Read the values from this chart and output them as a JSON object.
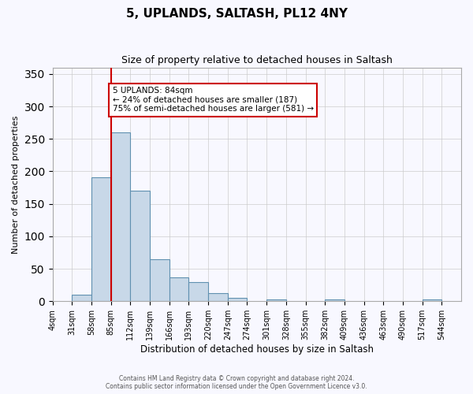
{
  "title": "5, UPLANDS, SALTASH, PL12 4NY",
  "subtitle": "Size of property relative to detached houses in Saltash",
  "xlabel": "Distribution of detached houses by size in Saltash",
  "ylabel": "Number of detached properties",
  "footnote1": "Contains HM Land Registry data © Crown copyright and database right 2024.",
  "footnote2": "Contains public sector information licensed under the Open Government Licence v3.0.",
  "bin_labels": [
    "4sqm",
    "31sqm",
    "58sqm",
    "85sqm",
    "112sqm",
    "139sqm",
    "166sqm",
    "193sqm",
    "220sqm",
    "247sqm",
    "274sqm",
    "301sqm",
    "328sqm",
    "355sqm",
    "382sqm",
    "409sqm",
    "436sqm",
    "463sqm",
    "490sqm",
    "517sqm",
    "544sqm"
  ],
  "bin_edges": [
    4,
    31,
    58,
    85,
    112,
    139,
    166,
    193,
    220,
    247,
    274,
    301,
    328,
    355,
    382,
    409,
    436,
    463,
    490,
    517,
    544
  ],
  "bar_values": [
    0,
    10,
    191,
    260,
    170,
    65,
    37,
    29,
    13,
    5,
    0,
    3,
    0,
    0,
    3,
    0,
    0,
    0,
    0,
    3
  ],
  "bar_color": "#c8d8e8",
  "bar_edge_color": "#6090b0",
  "property_size": 84,
  "vline_x": 85,
  "vline_color": "#cc0000",
  "annotation_text": "5 UPLANDS: 84sqm\n← 24% of detached houses are smaller (187)\n75% of semi-detached houses are larger (581) →",
  "annotation_box_color": "#cc0000",
  "ylim": [
    0,
    360
  ],
  "yticks": [
    0,
    50,
    100,
    150,
    200,
    250,
    300,
    350
  ],
  "background_color": "#f8f8ff",
  "grid_color": "#cccccc"
}
